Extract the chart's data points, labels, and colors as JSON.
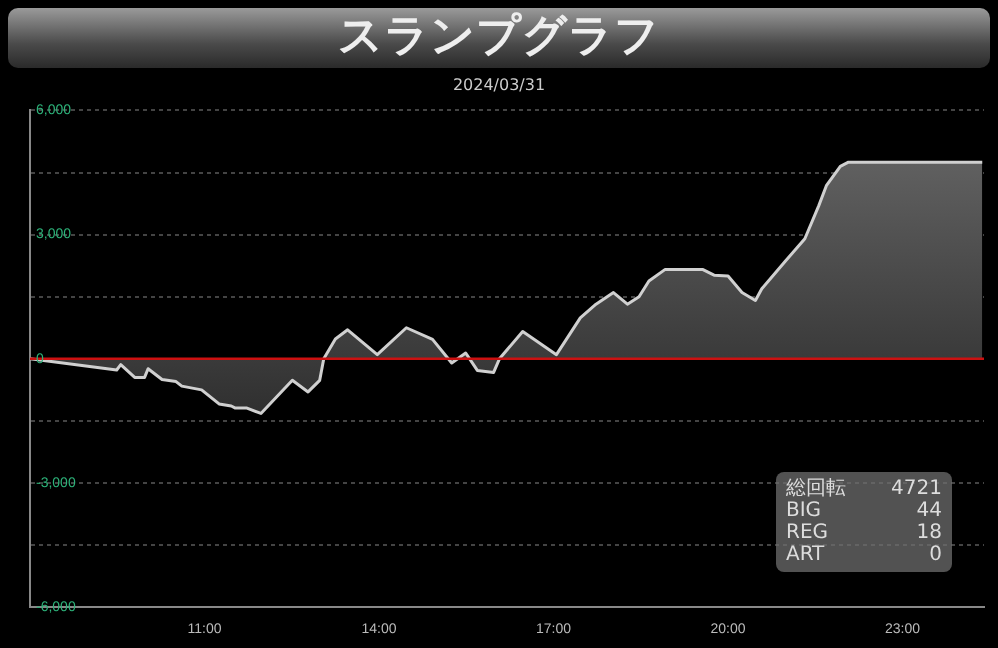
{
  "chart_data": {
    "type": "area",
    "title": "スランプグラフ",
    "subtitle": "2024/03/31",
    "x": [
      8,
      9.49,
      9.56,
      9.8,
      9.97,
      10.03,
      10.27,
      10.51,
      10.61,
      10.95,
      11.25,
      11.46,
      11.53,
      11.73,
      11.97,
      12.51,
      12.78,
      12.98,
      13.05,
      13.25,
      13.46,
      13.97,
      14.47,
      14.92,
      15.25,
      15.49,
      15.69,
      15.97,
      16.07,
      16.47,
      17.05,
      17.46,
      17.73,
      18.03,
      18.27,
      18.47,
      18.64,
      18.92,
      19.56,
      19.76,
      20,
      20.24,
      20.47,
      20.58,
      20.98,
      21.32,
      21.56,
      21.69,
      21.93,
      22.07,
      24.37
    ],
    "series": [
      {
        "color": "#d0d0d0",
        "values": [
          0,
          -270,
          -140,
          -450,
          -450,
          -240,
          -500,
          -550,
          -660,
          -750,
          -1090,
          -1140,
          -1190,
          -1190,
          -1320,
          -520,
          -800,
          -520,
          0,
          480,
          700,
          100,
          750,
          470,
          -100,
          140,
          -280,
          -330,
          0,
          660,
          100,
          990,
          1320,
          1600,
          1320,
          1500,
          1880,
          2160,
          2160,
          2020,
          2000,
          1600,
          1410,
          1690,
          2350,
          2900,
          3700,
          4180,
          4650,
          4750,
          4750
        ]
      }
    ],
    "xlim": [
      8,
      24.4
    ],
    "xticks": [
      {
        "value": 11,
        "label": "11:00"
      },
      {
        "value": 14,
        "label": "14:00"
      },
      {
        "value": 17,
        "label": "17:00"
      },
      {
        "value": 20,
        "label": "20:00"
      },
      {
        "value": 23,
        "label": "23:00"
      }
    ],
    "ylim": [
      -6000,
      6000
    ],
    "yticks": [
      {
        "value": -6000,
        "label": "-6,000"
      },
      {
        "value": -4500,
        "label": null
      },
      {
        "value": -3000,
        "label": "-3,000"
      },
      {
        "value": -1500,
        "label": null
      },
      {
        "value": 0,
        "label": "0"
      },
      {
        "value": 1500,
        "label": null
      },
      {
        "value": 3000,
        "label": "3,000"
      },
      {
        "value": 4500,
        "label": null
      },
      {
        "value": 6000,
        "label": "6,000"
      }
    ],
    "grid": "y",
    "legend": false,
    "marker": "none",
    "line_style": "solid",
    "ref_lines": [
      {
        "axis": "y",
        "value": 0,
        "color": "#cc1111"
      }
    ],
    "annotations": [
      "総回転 4721",
      "BIG 44",
      "REG 18",
      "ART 0"
    ]
  }
}
